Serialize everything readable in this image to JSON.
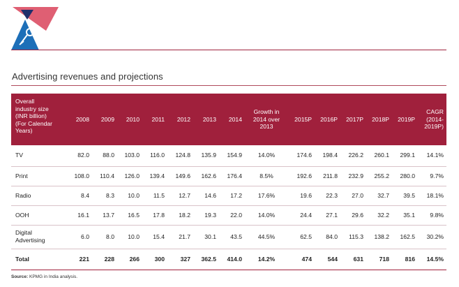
{
  "section_title": "Advertising revenues and projections",
  "table": {
    "header": [
      "Overall industry size (INR billion) (For Calendar Years)",
      "2008",
      "2009",
      "2010",
      "2011",
      "2012",
      "2013",
      "2014",
      "Growth in 2014 over 2013",
      "2015P",
      "2016P",
      "2017P",
      "2018P",
      "2019P",
      "CAGR (2014-2019P)"
    ],
    "header_lines": {
      "first": [
        "Overall",
        "industry size",
        "(INR billion)",
        "(For Calendar",
        "Years)"
      ],
      "growth": [
        "Growth in",
        "2014 over",
        "2013"
      ],
      "cagr": [
        "CAGR",
        "(2014-",
        "2019P)"
      ]
    },
    "rows": [
      {
        "label": "TV",
        "cells": [
          "82.0",
          "88.0",
          "103.0",
          "116.0",
          "124.8",
          "135.9",
          "154.9",
          "14.0%",
          "174.6",
          "198.4",
          "226.2",
          "260.1",
          "299.1",
          "14.1%"
        ]
      },
      {
        "label": "Print",
        "cells": [
          "108.0",
          "110.4",
          "126.0",
          "139.4",
          "149.6",
          "162.6",
          "176.4",
          "8.5%",
          "192.6",
          "211.8",
          "232.9",
          "255.2",
          "280.0",
          "9.7%"
        ]
      },
      {
        "label": "Radio",
        "cells": [
          "8.4",
          "8.3",
          "10.0",
          "11.5",
          "12.7",
          "14.6",
          "17.2",
          "17.6%",
          "19.6",
          "22.3",
          "27.0",
          "32.7",
          "39.5",
          "18.1%"
        ]
      },
      {
        "label": "OOH",
        "cells": [
          "16.1",
          "13.7",
          "16.5",
          "17.8",
          "18.2",
          "19.3",
          "22.0",
          "14.0%",
          "24.4",
          "27.1",
          "29.6",
          "32.2",
          "35.1",
          "9.8%"
        ]
      },
      {
        "label_lines": [
          "Digital",
          "Advertising"
        ],
        "cells": [
          "6.0",
          "8.0",
          "10.0",
          "15.4",
          "21.7",
          "30.1",
          "43.5",
          "44.5%",
          "62.5",
          "84.0",
          "115.3",
          "138.2",
          "162.5",
          "30.2%"
        ]
      },
      {
        "label": "Total",
        "cells": [
          "221",
          "228",
          "266",
          "300",
          "327",
          "362.5",
          "414.0",
          "14.2%",
          "474",
          "544",
          "631",
          "718",
          "816",
          "14.5%"
        ]
      }
    ]
  },
  "source": {
    "prefix": "Source:",
    "text": " KPMG in India analysis."
  },
  "colors": {
    "accent": "#a0203c",
    "logo_navy": "#1f2f6b",
    "logo_red": "#c8102e",
    "logo_blue": "#1d6fb8"
  }
}
